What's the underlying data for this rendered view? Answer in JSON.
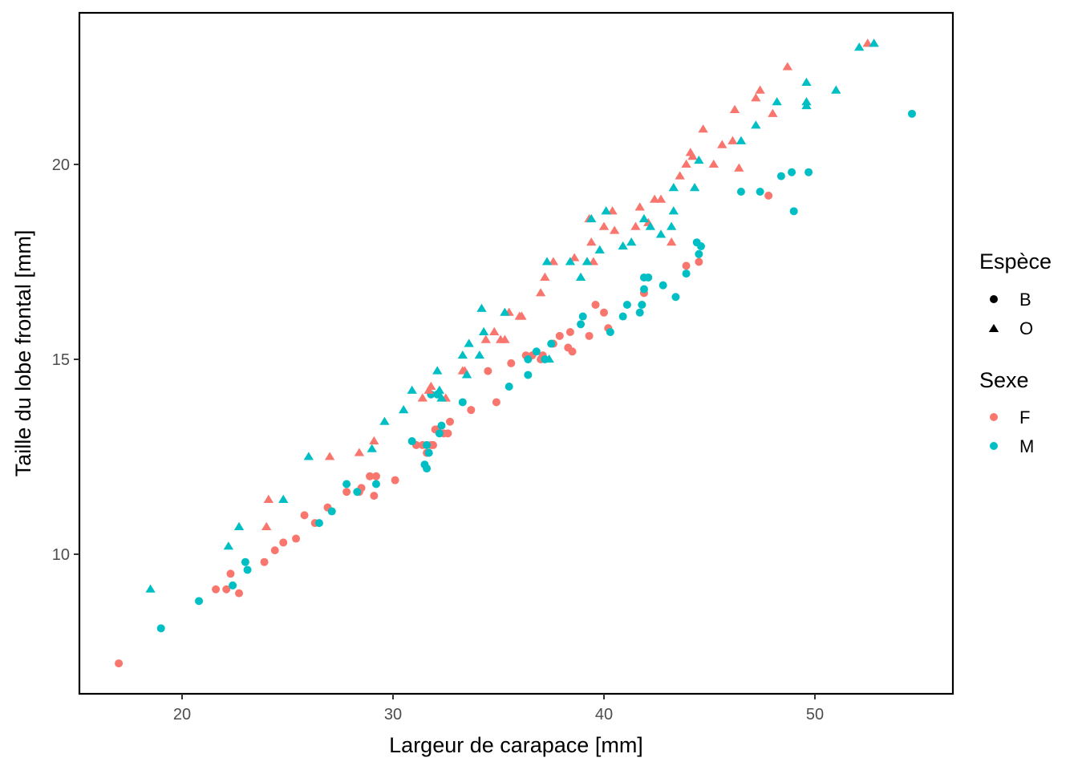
{
  "chart_data": {
    "type": "scatter",
    "title": "",
    "xlabel": "Largeur de carapace  [mm]",
    "ylabel": "Taille du lobe frontal  [mm]",
    "xlim": [
      15.2,
      56.5
    ],
    "ylim": [
      6.55,
      24.1
    ],
    "x_ticks": [
      20,
      30,
      40,
      50
    ],
    "y_ticks": [
      10,
      15,
      20
    ],
    "x_tick_labels": [
      "20",
      "30",
      "40",
      "50"
    ],
    "y_tick_labels": [
      "10",
      "15",
      "20"
    ],
    "grid": false,
    "legend_placement": "right",
    "legend": {
      "shape": {
        "title": "Espèce",
        "items": [
          {
            "key": "B",
            "label": "B",
            "shape": "circle"
          },
          {
            "key": "O",
            "label": "O",
            "shape": "triangle"
          }
        ]
      },
      "color": {
        "title": "Sexe",
        "items": [
          {
            "key": "F",
            "label": "F",
            "color": "#F8766D"
          },
          {
            "key": "M",
            "label": "M",
            "color": "#00BFC4"
          }
        ]
      }
    },
    "colors": {
      "F": "#F8766D",
      "M": "#00BFC4"
    },
    "series": [
      {
        "species": "B",
        "sex": "F",
        "points": [
          [
            17.0,
            7.2
          ],
          [
            21.6,
            9.1
          ],
          [
            22.1,
            9.1
          ],
          [
            22.3,
            9.5
          ],
          [
            22.7,
            9.0
          ],
          [
            23.9,
            9.8
          ],
          [
            24.4,
            10.1
          ],
          [
            24.8,
            10.3
          ],
          [
            25.4,
            10.4
          ],
          [
            25.8,
            11.0
          ],
          [
            26.3,
            10.8
          ],
          [
            26.9,
            11.2
          ],
          [
            27.8,
            11.6
          ],
          [
            28.4,
            11.6
          ],
          [
            28.5,
            11.7
          ],
          [
            28.9,
            12.0
          ],
          [
            29.1,
            11.5
          ],
          [
            29.2,
            12.0
          ],
          [
            30.1,
            11.9
          ],
          [
            31.1,
            12.8
          ],
          [
            31.4,
            12.8
          ],
          [
            31.6,
            12.6
          ],
          [
            31.8,
            12.8
          ],
          [
            31.9,
            12.8
          ],
          [
            32.0,
            13.2
          ],
          [
            32.4,
            13.1
          ],
          [
            32.6,
            13.1
          ],
          [
            32.7,
            13.4
          ],
          [
            32.1,
            13.2
          ],
          [
            33.7,
            13.7
          ],
          [
            34.9,
            13.9
          ],
          [
            34.5,
            14.7
          ],
          [
            35.6,
            14.9
          ],
          [
            36.3,
            15.1
          ],
          [
            36.6,
            15.1
          ],
          [
            37.0,
            15.0
          ],
          [
            37.1,
            15.1
          ],
          [
            37.6,
            15.4
          ],
          [
            37.9,
            15.6
          ],
          [
            38.3,
            15.3
          ],
          [
            38.4,
            15.7
          ],
          [
            38.5,
            15.2
          ],
          [
            39.3,
            15.6
          ],
          [
            39.6,
            16.4
          ],
          [
            40.0,
            16.2
          ],
          [
            40.2,
            15.8
          ],
          [
            41.9,
            16.7
          ],
          [
            43.9,
            17.4
          ],
          [
            44.5,
            17.5
          ],
          [
            47.8,
            19.2
          ]
        ]
      },
      {
        "species": "B",
        "sex": "M",
        "points": [
          [
            19.0,
            8.1
          ],
          [
            20.8,
            8.8
          ],
          [
            22.4,
            9.2
          ],
          [
            23.0,
            9.8
          ],
          [
            23.1,
            9.6
          ],
          [
            26.5,
            10.8
          ],
          [
            27.1,
            11.1
          ],
          [
            27.8,
            11.8
          ],
          [
            28.3,
            11.6
          ],
          [
            29.2,
            11.8
          ],
          [
            30.9,
            12.9
          ],
          [
            31.5,
            12.3
          ],
          [
            31.6,
            12.2
          ],
          [
            31.6,
            12.8
          ],
          [
            31.7,
            12.6
          ],
          [
            31.8,
            14.1
          ],
          [
            32.1,
            14.1
          ],
          [
            32.3,
            13.3
          ],
          [
            32.2,
            13.1
          ],
          [
            33.3,
            13.9
          ],
          [
            35.5,
            14.3
          ],
          [
            36.4,
            14.6
          ],
          [
            36.4,
            15.0
          ],
          [
            36.8,
            15.2
          ],
          [
            37.2,
            15.0
          ],
          [
            37.5,
            15.4
          ],
          [
            38.9,
            15.9
          ],
          [
            39.0,
            16.1
          ],
          [
            40.3,
            15.7
          ],
          [
            40.9,
            16.1
          ],
          [
            41.1,
            16.4
          ],
          [
            41.7,
            16.2
          ],
          [
            41.8,
            16.4
          ],
          [
            41.9,
            16.8
          ],
          [
            41.9,
            17.1
          ],
          [
            42.1,
            17.1
          ],
          [
            42.8,
            16.9
          ],
          [
            43.4,
            16.6
          ],
          [
            43.9,
            17.2
          ],
          [
            44.4,
            18.0
          ],
          [
            44.5,
            17.7
          ],
          [
            44.6,
            17.9
          ],
          [
            46.5,
            19.3
          ],
          [
            47.4,
            19.3
          ],
          [
            48.4,
            19.7
          ],
          [
            48.9,
            19.8
          ],
          [
            49.0,
            18.8
          ],
          [
            49.7,
            19.8
          ],
          [
            54.6,
            21.3
          ]
        ]
      },
      {
        "species": "O",
        "sex": "F",
        "points": [
          [
            24.0,
            10.7
          ],
          [
            24.1,
            11.4
          ],
          [
            27.0,
            12.5
          ],
          [
            28.4,
            12.6
          ],
          [
            29.1,
            12.9
          ],
          [
            31.4,
            14.0
          ],
          [
            31.7,
            14.2
          ],
          [
            31.8,
            14.3
          ],
          [
            32.5,
            14.0
          ],
          [
            33.3,
            14.7
          ],
          [
            33.4,
            14.7
          ],
          [
            34.4,
            15.5
          ],
          [
            34.8,
            15.7
          ],
          [
            35.1,
            15.5
          ],
          [
            35.5,
            16.2
          ],
          [
            35.3,
            15.5
          ],
          [
            36.1,
            16.1
          ],
          [
            36.0,
            16.1
          ],
          [
            37.0,
            16.7
          ],
          [
            37.2,
            17.1
          ],
          [
            37.6,
            17.5
          ],
          [
            38.6,
            17.6
          ],
          [
            39.2,
            17.5
          ],
          [
            39.3,
            18.6
          ],
          [
            39.4,
            18.0
          ],
          [
            39.5,
            17.5
          ],
          [
            40.0,
            18.4
          ],
          [
            40.4,
            18.8
          ],
          [
            40.5,
            18.3
          ],
          [
            41.5,
            18.4
          ],
          [
            41.7,
            18.9
          ],
          [
            42.1,
            18.5
          ],
          [
            42.4,
            19.1
          ],
          [
            42.7,
            19.1
          ],
          [
            43.2,
            18.0
          ],
          [
            43.6,
            19.7
          ],
          [
            43.9,
            20.0
          ],
          [
            44.1,
            20.3
          ],
          [
            44.2,
            20.2
          ],
          [
            44.7,
            20.9
          ],
          [
            45.2,
            20.0
          ],
          [
            45.6,
            20.5
          ],
          [
            46.1,
            20.6
          ],
          [
            46.2,
            21.4
          ],
          [
            46.4,
            19.9
          ],
          [
            47.2,
            21.7
          ],
          [
            47.4,
            21.9
          ],
          [
            48.0,
            21.3
          ],
          [
            48.7,
            22.5
          ],
          [
            52.5,
            23.1
          ]
        ]
      },
      {
        "species": "O",
        "sex": "M",
        "points": [
          [
            18.5,
            9.1
          ],
          [
            22.2,
            10.2
          ],
          [
            22.7,
            10.7
          ],
          [
            24.8,
            11.4
          ],
          [
            26.0,
            12.5
          ],
          [
            29.0,
            12.7
          ],
          [
            29.6,
            13.4
          ],
          [
            30.5,
            13.7
          ],
          [
            30.9,
            14.2
          ],
          [
            32.1,
            14.7
          ],
          [
            32.2,
            14.2
          ],
          [
            32.3,
            14.0
          ],
          [
            33.3,
            15.1
          ],
          [
            33.5,
            14.6
          ],
          [
            33.6,
            15.4
          ],
          [
            34.1,
            15.1
          ],
          [
            34.2,
            16.3
          ],
          [
            34.3,
            15.7
          ],
          [
            35.3,
            16.2
          ],
          [
            37.3,
            17.5
          ],
          [
            37.4,
            15.0
          ],
          [
            38.4,
            17.5
          ],
          [
            38.9,
            17.1
          ],
          [
            39.2,
            17.5
          ],
          [
            39.4,
            18.6
          ],
          [
            39.8,
            17.8
          ],
          [
            40.1,
            18.8
          ],
          [
            40.9,
            17.9
          ],
          [
            41.3,
            18.0
          ],
          [
            41.9,
            18.6
          ],
          [
            42.2,
            18.4
          ],
          [
            42.7,
            18.2
          ],
          [
            43.2,
            18.4
          ],
          [
            43.3,
            18.8
          ],
          [
            43.3,
            19.4
          ],
          [
            44.3,
            19.4
          ],
          [
            44.5,
            20.1
          ],
          [
            46.5,
            20.6
          ],
          [
            47.2,
            21.0
          ],
          [
            48.2,
            21.6
          ],
          [
            49.6,
            21.5
          ],
          [
            49.6,
            21.6
          ],
          [
            49.6,
            22.1
          ],
          [
            51.0,
            21.9
          ],
          [
            52.1,
            23.0
          ],
          [
            52.8,
            23.1
          ]
        ]
      }
    ]
  }
}
